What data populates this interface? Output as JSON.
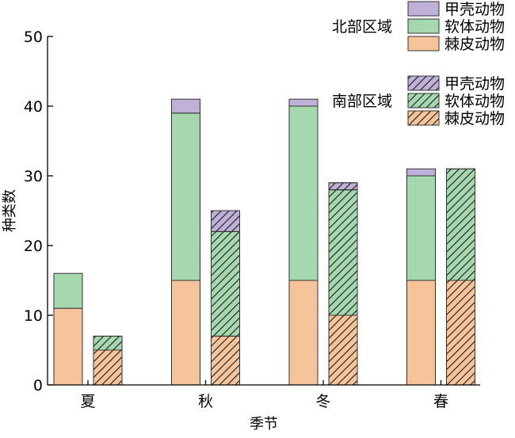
{
  "chart_data": {
    "type": "bar",
    "stacked": true,
    "grouped_by_region": true,
    "xlabel": "季节",
    "ylabel": "种类数",
    "ylim": [
      0,
      50
    ],
    "yticks": [
      0,
      10,
      20,
      30,
      40,
      50
    ],
    "categories": [
      "夏",
      "秋",
      "冬",
      "春"
    ],
    "regions": [
      {
        "name": "北部区域",
        "pattern": "solid",
        "series": [
          {
            "name": "棘皮动物",
            "values": [
              11,
              15,
              15,
              15
            ]
          },
          {
            "name": "软体动物",
            "values": [
              5,
              24,
              25,
              15
            ]
          },
          {
            "name": "甲壳动物",
            "values": [
              0,
              2,
              1,
              1
            ]
          }
        ]
      },
      {
        "name": "南部区域",
        "pattern": "hatched",
        "series": [
          {
            "name": "棘皮动物",
            "values": [
              5,
              7,
              10,
              15
            ]
          },
          {
            "name": "软体动物",
            "values": [
              2,
              15,
              18,
              16
            ]
          },
          {
            "name": "甲壳动物",
            "values": [
              0,
              3,
              1,
              0
            ]
          }
        ]
      }
    ],
    "colors": {
      "棘皮动物": "#f6c49b",
      "软体动物": "#a6d8b0",
      "甲壳动物": "#bfb0d8"
    },
    "legend_order": [
      "甲壳动物",
      "软体动物",
      "棘皮动物"
    ],
    "legend": {
      "placement": "top-right"
    }
  }
}
